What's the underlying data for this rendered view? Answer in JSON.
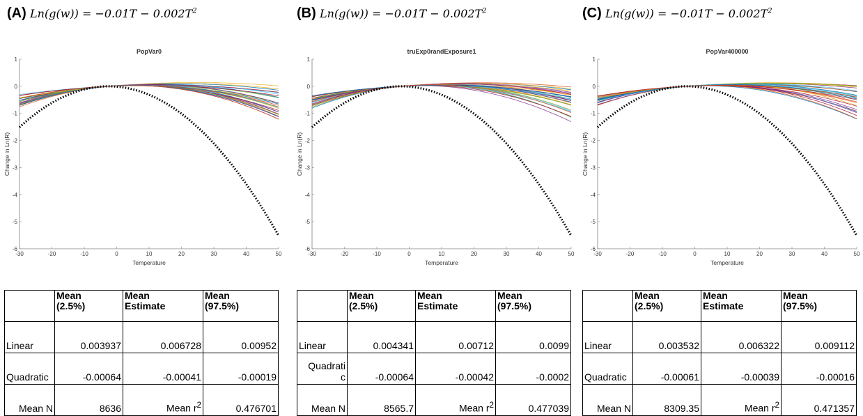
{
  "panels": [
    {
      "letter": "(A)",
      "equation": "Ln(g(w)) = −0.01T − 0.002T",
      "equation_sup": "2",
      "table": {
        "headers": [
          "",
          "Mean\n(2.5%)",
          "Mean\nEstimate",
          "Mean\n(97.5%)"
        ],
        "rows": [
          [
            "Linear",
            "0.003937",
            "0.006728",
            "0.00952"
          ],
          [
            "Quadratic",
            "-0.00064",
            "-0.00041",
            "-0.00019"
          ]
        ],
        "footer": {
          "n_label": "Mean N",
          "n_value": "8636",
          "r2_label": "Mean r",
          "r2_sup": "2",
          "r2_value": "0.476701"
        }
      }
    },
    {
      "letter": "(B)",
      "equation": "Ln(g(w)) = −0.01T − 0.002T",
      "equation_sup": "2",
      "table": {
        "headers": [
          "",
          "Mean\n(2.5%)",
          "Mean\nEstimate",
          "Mean\n(97.5%)"
        ],
        "rows": [
          [
            "Linear",
            "0.004341",
            "0.00712",
            "0.0099"
          ],
          [
            "Quadrati\nc",
            "-0.00064",
            "-0.00042",
            "-0.0002"
          ]
        ],
        "footer": {
          "n_label": "Mean N",
          "n_value": "8565.7",
          "r2_label": "Mean r",
          "r2_sup": "2",
          "r2_value": "0.477039"
        }
      }
    },
    {
      "letter": "(C)",
      "equation": "Ln(g(w)) = −0.01T − 0.002T",
      "equation_sup": "2",
      "table": {
        "headers": [
          "",
          "Mean\n(2.5%)",
          "Mean\nEstimate",
          "Mean\n(97.5%)"
        ],
        "rows": [
          [
            "Linear",
            "0.003532",
            "0.006322",
            "0.009112"
          ],
          [
            "Quadratic",
            "-0.00061",
            "-0.00039",
            "-0.00016"
          ]
        ],
        "footer": {
          "n_label": "Mean N",
          "n_value": "8309.35",
          "r2_label": "Mean r",
          "r2_sup": "2",
          "r2_value": "0.471357"
        }
      }
    }
  ],
  "chart_data": [
    {
      "type": "line",
      "title": "PopVar0",
      "xlabel": "Temperature",
      "ylabel": "Change in Ln(R)",
      "xlim": [
        -30,
        50
      ],
      "ylim": [
        -6,
        1
      ],
      "xticks": [
        -30,
        -20,
        -10,
        0,
        10,
        20,
        30,
        40,
        50
      ],
      "yticks": [
        1,
        0,
        -1,
        -2,
        -3,
        -4,
        -5,
        -6
      ],
      "true_curve": {
        "style": "dotted",
        "color": "#000000",
        "linear": -0.01,
        "quadratic": -0.002,
        "center": -2.5
      },
      "estimated_curves": {
        "count": 30,
        "linear_range": [
          0.003937,
          0.00952
        ],
        "quadratic_range": [
          -0.00064,
          -0.00019
        ]
      },
      "grid": false
    },
    {
      "type": "line",
      "title": "truExp0randExposure1",
      "xlabel": "Temperature",
      "ylabel": "Change in Ln(R)",
      "xlim": [
        -30,
        50
      ],
      "ylim": [
        -6,
        1
      ],
      "xticks": [
        -30,
        -20,
        -10,
        0,
        10,
        20,
        30,
        40,
        50
      ],
      "yticks": [
        1,
        0,
        -1,
        -2,
        -3,
        -4,
        -5,
        -6
      ],
      "true_curve": {
        "style": "dotted",
        "color": "#000000",
        "linear": -0.01,
        "quadratic": -0.002,
        "center": -2.5
      },
      "estimated_curves": {
        "count": 30,
        "linear_range": [
          0.004341,
          0.0099
        ],
        "quadratic_range": [
          -0.00064,
          -0.0002
        ]
      },
      "grid": false
    },
    {
      "type": "line",
      "title": "PopVar400000",
      "xlabel": "Temperature",
      "ylabel": "Change in Ln(R)",
      "xlim": [
        -30,
        50
      ],
      "ylim": [
        -6,
        1
      ],
      "xticks": [
        -30,
        -20,
        -10,
        0,
        10,
        20,
        30,
        40,
        50
      ],
      "yticks": [
        1,
        0,
        -1,
        -2,
        -3,
        -4,
        -5,
        -6
      ],
      "true_curve": {
        "style": "dotted",
        "color": "#000000",
        "linear": -0.01,
        "quadratic": -0.002,
        "center": -2.5
      },
      "estimated_curves": {
        "count": 30,
        "linear_range": [
          0.003532,
          0.009112
        ],
        "quadratic_range": [
          -0.00061,
          -0.00016
        ]
      },
      "grid": false
    }
  ],
  "colors": {
    "series": [
      "#0072BD",
      "#D95319",
      "#EDB120",
      "#7E2F8E",
      "#77AC30",
      "#4DBEEE",
      "#A2142F"
    ],
    "true_curve": "#000000",
    "axis": "#808080"
  }
}
